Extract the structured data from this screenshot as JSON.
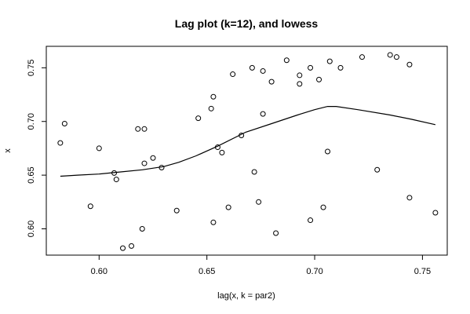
{
  "chart_data": {
    "type": "scatter",
    "title": "Lag plot (k=12), and lowess",
    "xlabel": "lag(x, k = par2)",
    "ylabel": "x",
    "xlim": [
      0.5755,
      0.7615
    ],
    "ylim": [
      0.5755,
      0.77
    ],
    "xticks": [
      "0.60",
      "0.65",
      "0.70",
      "0.75"
    ],
    "yticks": [
      "0.60",
      "0.65",
      "0.70",
      "0.75"
    ],
    "grid": false,
    "points": [
      [
        0.582,
        0.68
      ],
      [
        0.584,
        0.698
      ],
      [
        0.596,
        0.621
      ],
      [
        0.6,
        0.675
      ],
      [
        0.607,
        0.652
      ],
      [
        0.608,
        0.646
      ],
      [
        0.611,
        0.582
      ],
      [
        0.615,
        0.584
      ],
      [
        0.618,
        0.693
      ],
      [
        0.62,
        0.6
      ],
      [
        0.621,
        0.661
      ],
      [
        0.621,
        0.693
      ],
      [
        0.625,
        0.666
      ],
      [
        0.629,
        0.657
      ],
      [
        0.636,
        0.617
      ],
      [
        0.646,
        0.703
      ],
      [
        0.652,
        0.712
      ],
      [
        0.653,
        0.606
      ],
      [
        0.653,
        0.723
      ],
      [
        0.655,
        0.676
      ],
      [
        0.657,
        0.671
      ],
      [
        0.66,
        0.62
      ],
      [
        0.662,
        0.744
      ],
      [
        0.666,
        0.687
      ],
      [
        0.671,
        0.75
      ],
      [
        0.672,
        0.653
      ],
      [
        0.674,
        0.625
      ],
      [
        0.676,
        0.747
      ],
      [
        0.676,
        0.707
      ],
      [
        0.68,
        0.737
      ],
      [
        0.682,
        0.596
      ],
      [
        0.687,
        0.757
      ],
      [
        0.693,
        0.743
      ],
      [
        0.693,
        0.735
      ],
      [
        0.698,
        0.608
      ],
      [
        0.698,
        0.75
      ],
      [
        0.702,
        0.739
      ],
      [
        0.704,
        0.62
      ],
      [
        0.706,
        0.672
      ],
      [
        0.707,
        0.756
      ],
      [
        0.712,
        0.75
      ],
      [
        0.722,
        0.76
      ],
      [
        0.729,
        0.655
      ],
      [
        0.735,
        0.762
      ],
      [
        0.738,
        0.76
      ],
      [
        0.744,
        0.753
      ],
      [
        0.744,
        0.629
      ],
      [
        0.756,
        0.615
      ]
    ],
    "lowess": [
      [
        0.582,
        0.649
      ],
      [
        0.59,
        0.65
      ],
      [
        0.6,
        0.651
      ],
      [
        0.61,
        0.653
      ],
      [
        0.62,
        0.655
      ],
      [
        0.63,
        0.658
      ],
      [
        0.637,
        0.662
      ],
      [
        0.645,
        0.668
      ],
      [
        0.655,
        0.677
      ],
      [
        0.668,
        0.69
      ],
      [
        0.68,
        0.698
      ],
      [
        0.692,
        0.706
      ],
      [
        0.7,
        0.711
      ],
      [
        0.706,
        0.714
      ],
      [
        0.71,
        0.714
      ],
      [
        0.72,
        0.711
      ],
      [
        0.735,
        0.706
      ],
      [
        0.745,
        0.702
      ],
      [
        0.756,
        0.697
      ]
    ]
  }
}
